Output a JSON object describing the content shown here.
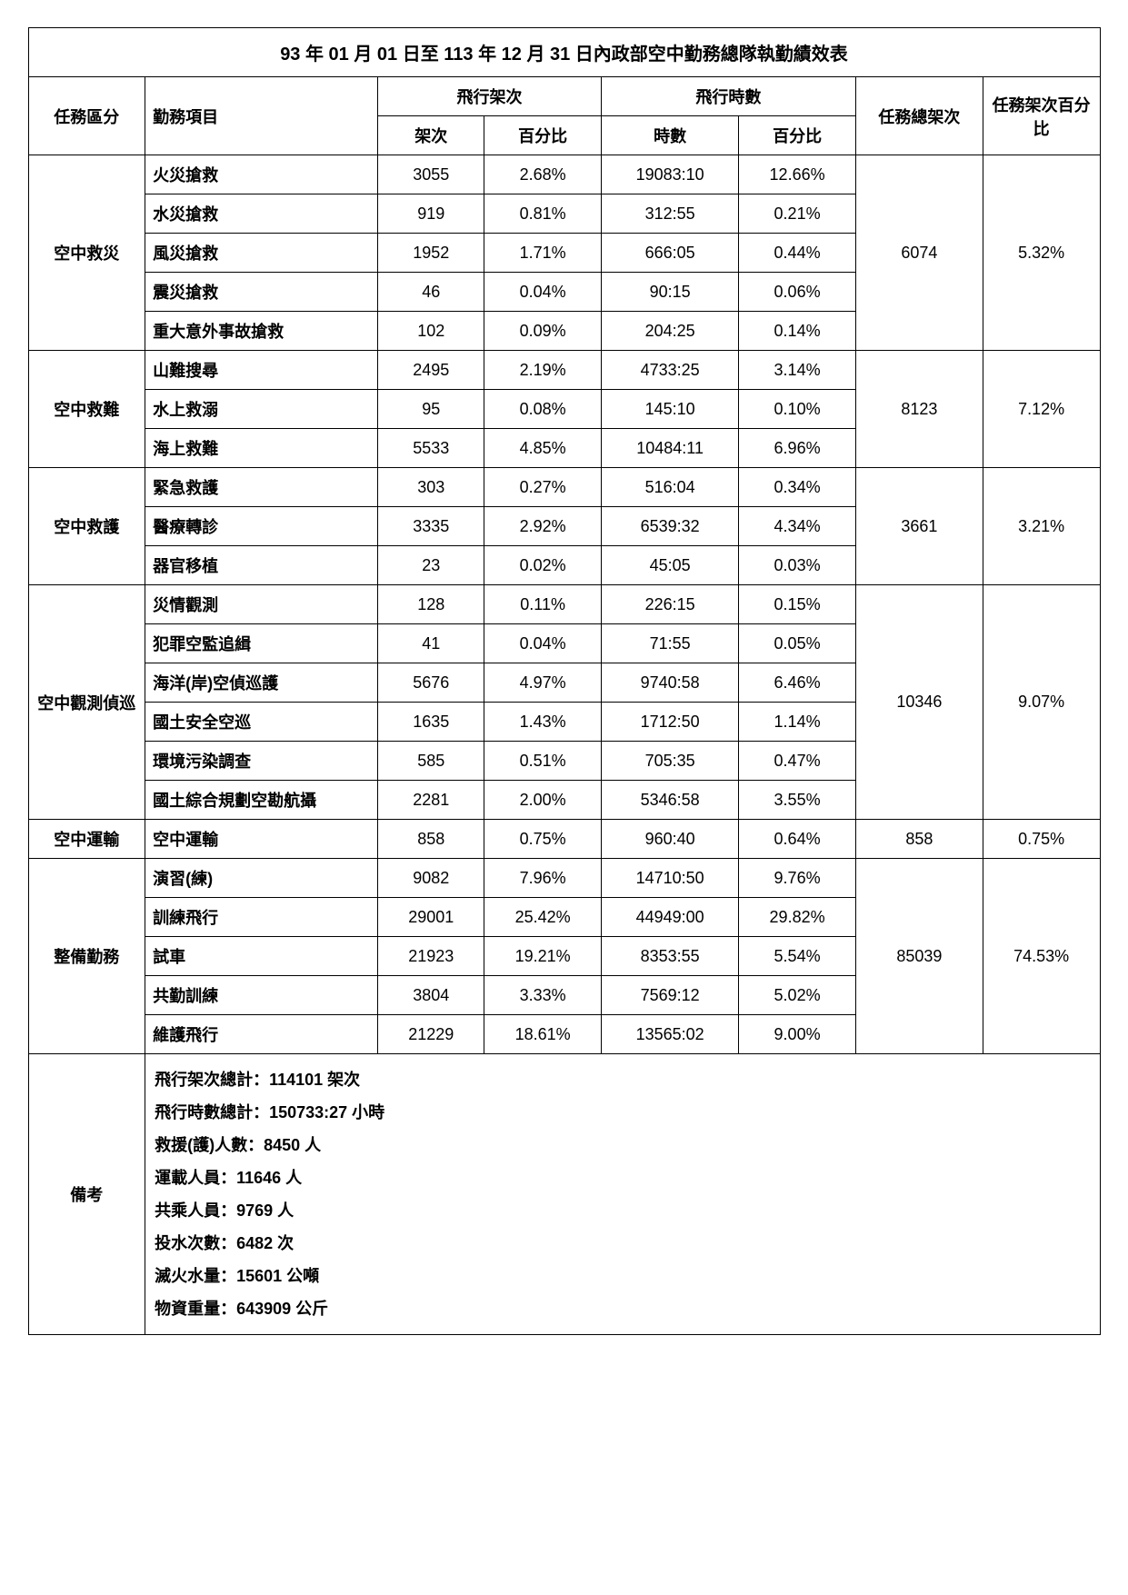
{
  "title": "93 年 01 月 01 日至 113 年 12 月 31 日內政部空中勤務總隊執勤績效表",
  "headers": {
    "category": "任務區分",
    "item": "勤務項目",
    "flight_sorties": "飛行架次",
    "flight_hours": "飛行時數",
    "total_sorties": "任務總架次",
    "total_sorties_pct": "任務架次百分比",
    "sorties": "架次",
    "pct": "百分比",
    "hours": "時數"
  },
  "groups": [
    {
      "category": "空中救災",
      "total_sorties": "6074",
      "total_pct": "5.32%",
      "rows": [
        {
          "item": "火災搶救",
          "sorties": "3055",
          "spct": "2.68%",
          "hours": "19083:10",
          "hpct": "12.66%"
        },
        {
          "item": "水災搶救",
          "sorties": "919",
          "spct": "0.81%",
          "hours": "312:55",
          "hpct": "0.21%"
        },
        {
          "item": "風災搶救",
          "sorties": "1952",
          "spct": "1.71%",
          "hours": "666:05",
          "hpct": "0.44%"
        },
        {
          "item": "震災搶救",
          "sorties": "46",
          "spct": "0.04%",
          "hours": "90:15",
          "hpct": "0.06%"
        },
        {
          "item": "重大意外事故搶救",
          "sorties": "102",
          "spct": "0.09%",
          "hours": "204:25",
          "hpct": "0.14%"
        }
      ]
    },
    {
      "category": "空中救難",
      "total_sorties": "8123",
      "total_pct": "7.12%",
      "rows": [
        {
          "item": "山難搜尋",
          "sorties": "2495",
          "spct": "2.19%",
          "hours": "4733:25",
          "hpct": "3.14%"
        },
        {
          "item": "水上救溺",
          "sorties": "95",
          "spct": "0.08%",
          "hours": "145:10",
          "hpct": "0.10%"
        },
        {
          "item": "海上救難",
          "sorties": "5533",
          "spct": "4.85%",
          "hours": "10484:11",
          "hpct": "6.96%"
        }
      ]
    },
    {
      "category": "空中救護",
      "total_sorties": "3661",
      "total_pct": "3.21%",
      "rows": [
        {
          "item": "緊急救護",
          "sorties": "303",
          "spct": "0.27%",
          "hours": "516:04",
          "hpct": "0.34%"
        },
        {
          "item": "醫療轉診",
          "sorties": "3335",
          "spct": "2.92%",
          "hours": "6539:32",
          "hpct": "4.34%"
        },
        {
          "item": "器官移植",
          "sorties": "23",
          "spct": "0.02%",
          "hours": "45:05",
          "hpct": "0.03%"
        }
      ]
    },
    {
      "category": "空中觀測偵巡",
      "total_sorties": "10346",
      "total_pct": "9.07%",
      "rows": [
        {
          "item": "災情觀測",
          "sorties": "128",
          "spct": "0.11%",
          "hours": "226:15",
          "hpct": "0.15%"
        },
        {
          "item": "犯罪空監追緝",
          "sorties": "41",
          "spct": "0.04%",
          "hours": "71:55",
          "hpct": "0.05%"
        },
        {
          "item": "海洋(岸)空偵巡護",
          "sorties": "5676",
          "spct": "4.97%",
          "hours": "9740:58",
          "hpct": "6.46%"
        },
        {
          "item": "國土安全空巡",
          "sorties": "1635",
          "spct": "1.43%",
          "hours": "1712:50",
          "hpct": "1.14%"
        },
        {
          "item": "環境污染調查",
          "sorties": "585",
          "spct": "0.51%",
          "hours": "705:35",
          "hpct": "0.47%"
        },
        {
          "item": "國土綜合規劃空勘航攝",
          "sorties": "2281",
          "spct": "2.00%",
          "hours": "5346:58",
          "hpct": "3.55%"
        }
      ]
    },
    {
      "category": "空中運輸",
      "total_sorties": "858",
      "total_pct": "0.75%",
      "rows": [
        {
          "item": "空中運輸",
          "sorties": "858",
          "spct": "0.75%",
          "hours": "960:40",
          "hpct": "0.64%"
        }
      ]
    },
    {
      "category": "整備勤務",
      "total_sorties": "85039",
      "total_pct": "74.53%",
      "rows": [
        {
          "item": "演習(練)",
          "sorties": "9082",
          "spct": "7.96%",
          "hours": "14710:50",
          "hpct": "9.76%"
        },
        {
          "item": "訓練飛行",
          "sorties": "29001",
          "spct": "25.42%",
          "hours": "44949:00",
          "hpct": "29.82%"
        },
        {
          "item": "試車",
          "sorties": "21923",
          "spct": "19.21%",
          "hours": "8353:55",
          "hpct": "5.54%"
        },
        {
          "item": "共勤訓練",
          "sorties": "3804",
          "spct": "3.33%",
          "hours": "7569:12",
          "hpct": "5.02%"
        },
        {
          "item": "維護飛行",
          "sorties": "21229",
          "spct": "18.61%",
          "hours": "13565:02",
          "hpct": "9.00%"
        }
      ]
    }
  ],
  "remarks": {
    "label": "備考",
    "lines": [
      "飛行架次總計：114101 架次",
      "飛行時數總計：150733:27 小時",
      "救援(護)人數：8450 人",
      "運載人員：11646 人",
      "共乘人員：9769 人",
      "投水次數：6482 次",
      "滅火水量：15601 公噸",
      "物資重量：643909 公斤"
    ]
  }
}
